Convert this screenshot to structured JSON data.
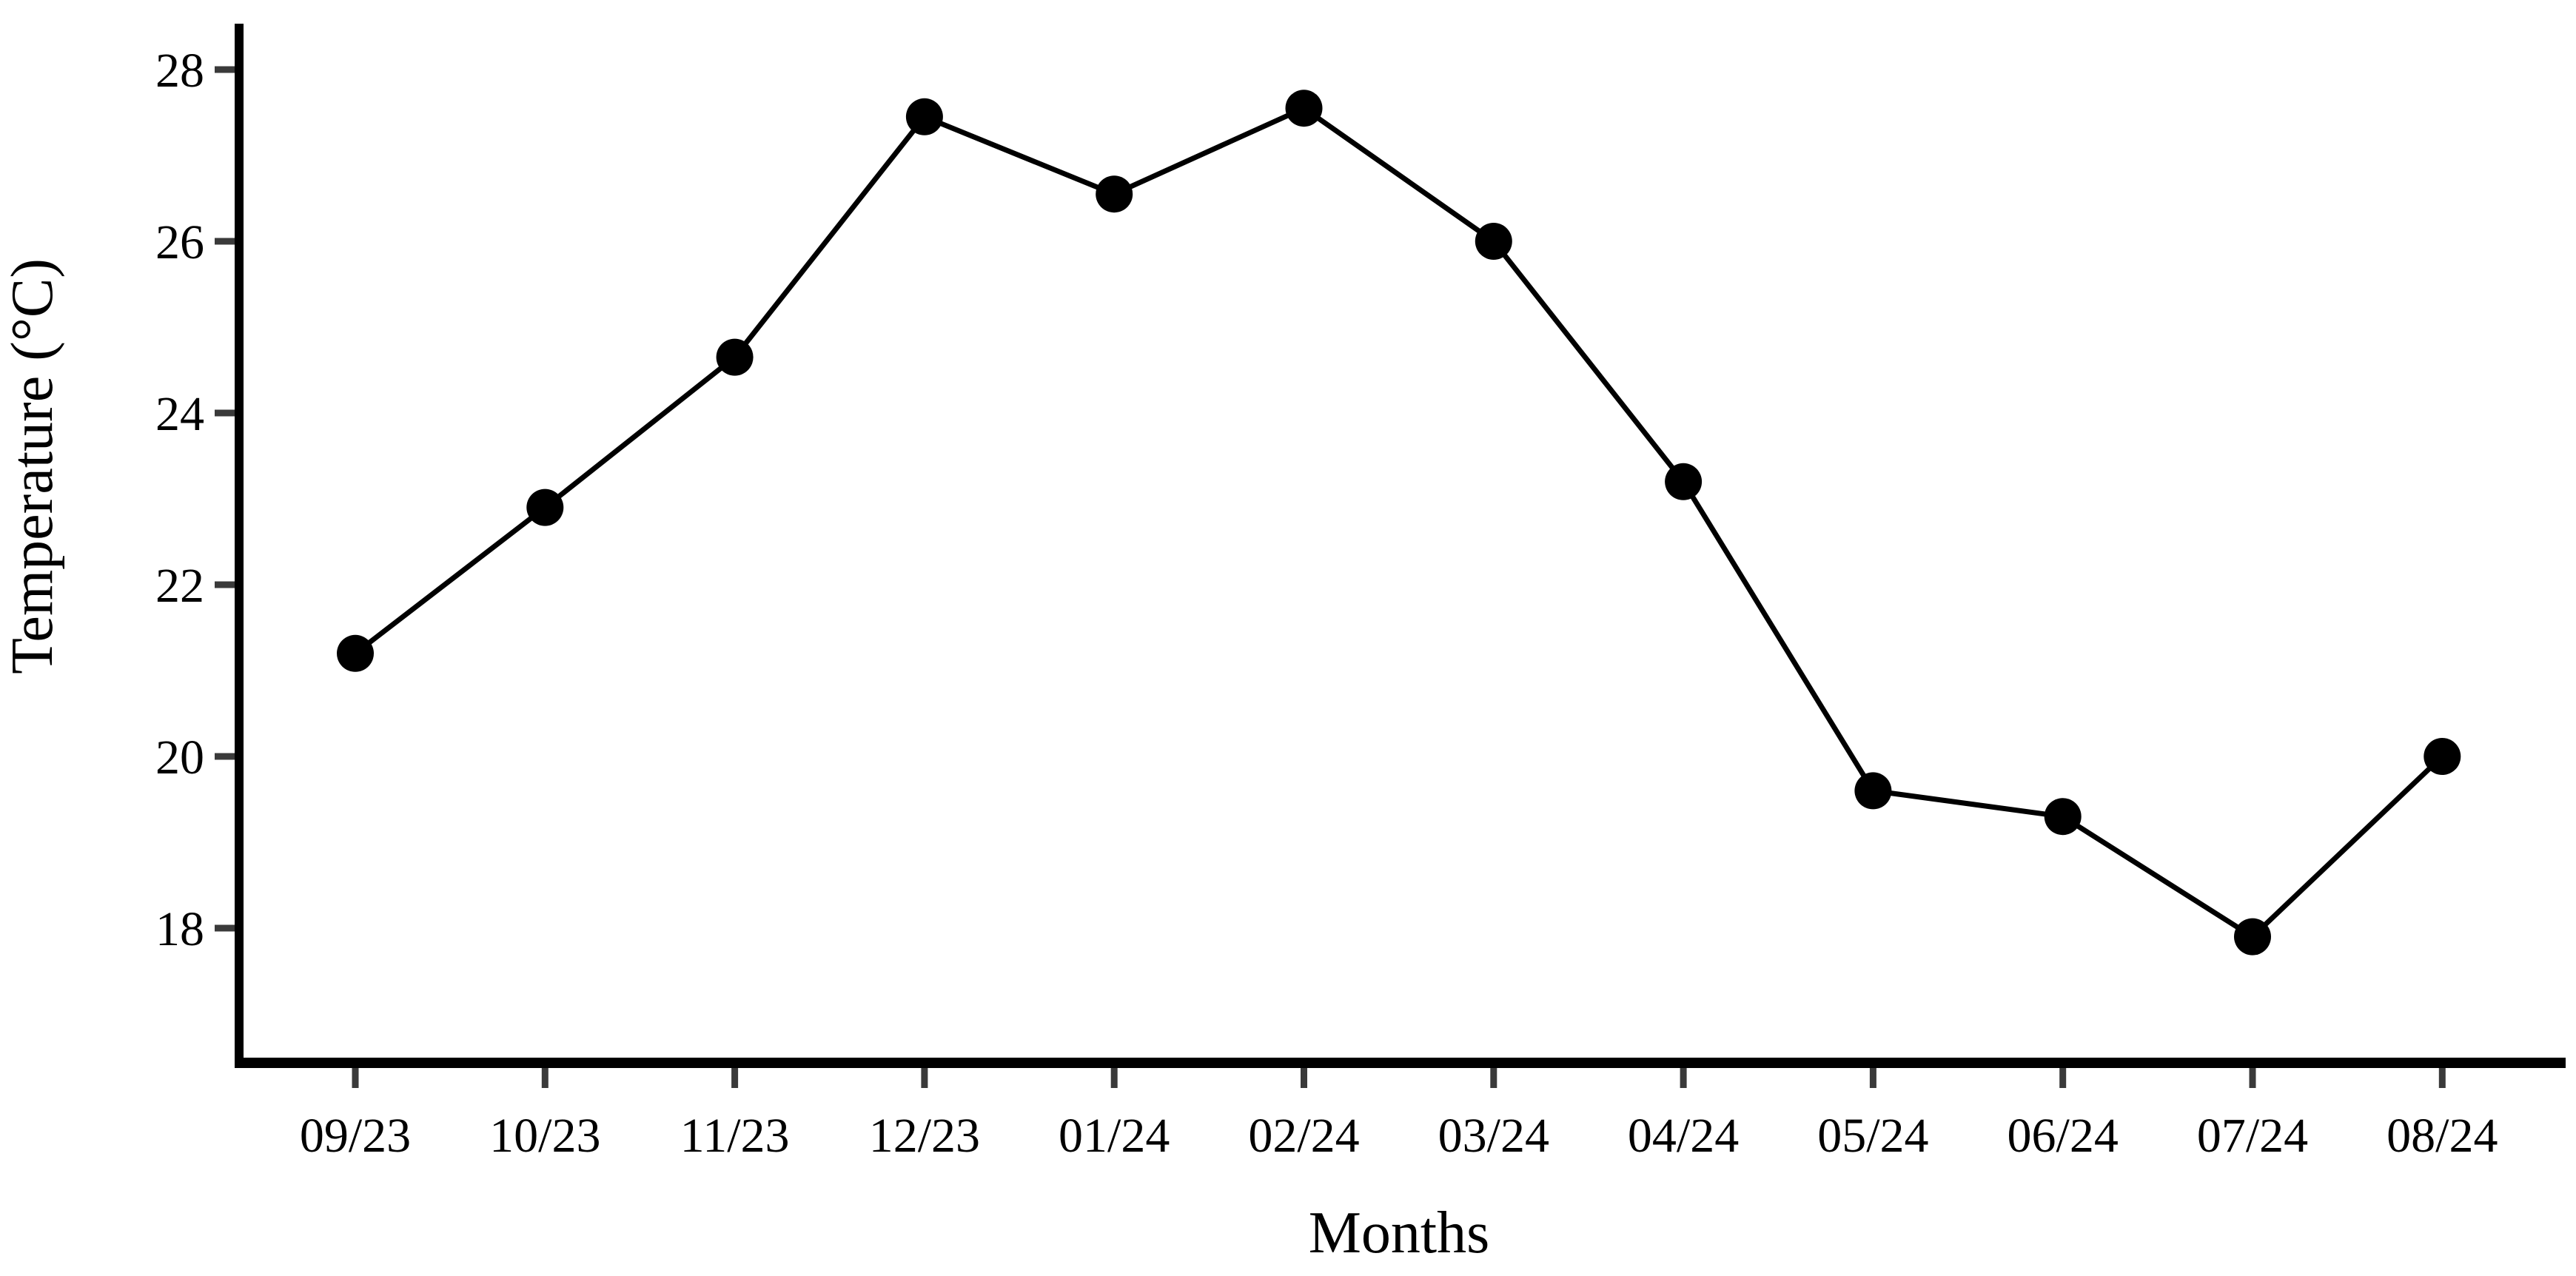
{
  "figure": {
    "background_color": "#ffffff",
    "axis_color": "#000000",
    "tick_mark_color": "#3a3a3a",
    "line_color": "#000000",
    "marker_color": "#000000"
  },
  "chart_data": {
    "type": "line",
    "title": "",
    "xlabel": "Months",
    "ylabel": "Temperature (°C)",
    "categories": [
      "09/23",
      "10/23",
      "11/23",
      "12/23",
      "01/24",
      "02/24",
      "03/24",
      "04/24",
      "05/24",
      "06/24",
      "07/24",
      "08/24"
    ],
    "series": [
      {
        "name": "Temperature",
        "values": [
          21.2,
          22.9,
          24.65,
          27.45,
          26.55,
          27.55,
          26.0,
          23.2,
          19.6,
          19.3,
          17.9,
          20.0
        ]
      }
    ],
    "yticks": [
      28,
      26,
      24,
      22,
      20,
      18
    ],
    "ylim": [
      16.4,
      28.55
    ],
    "grid": false,
    "legend_position": "none",
    "marker": "filled-circle",
    "line_style": "solid"
  }
}
